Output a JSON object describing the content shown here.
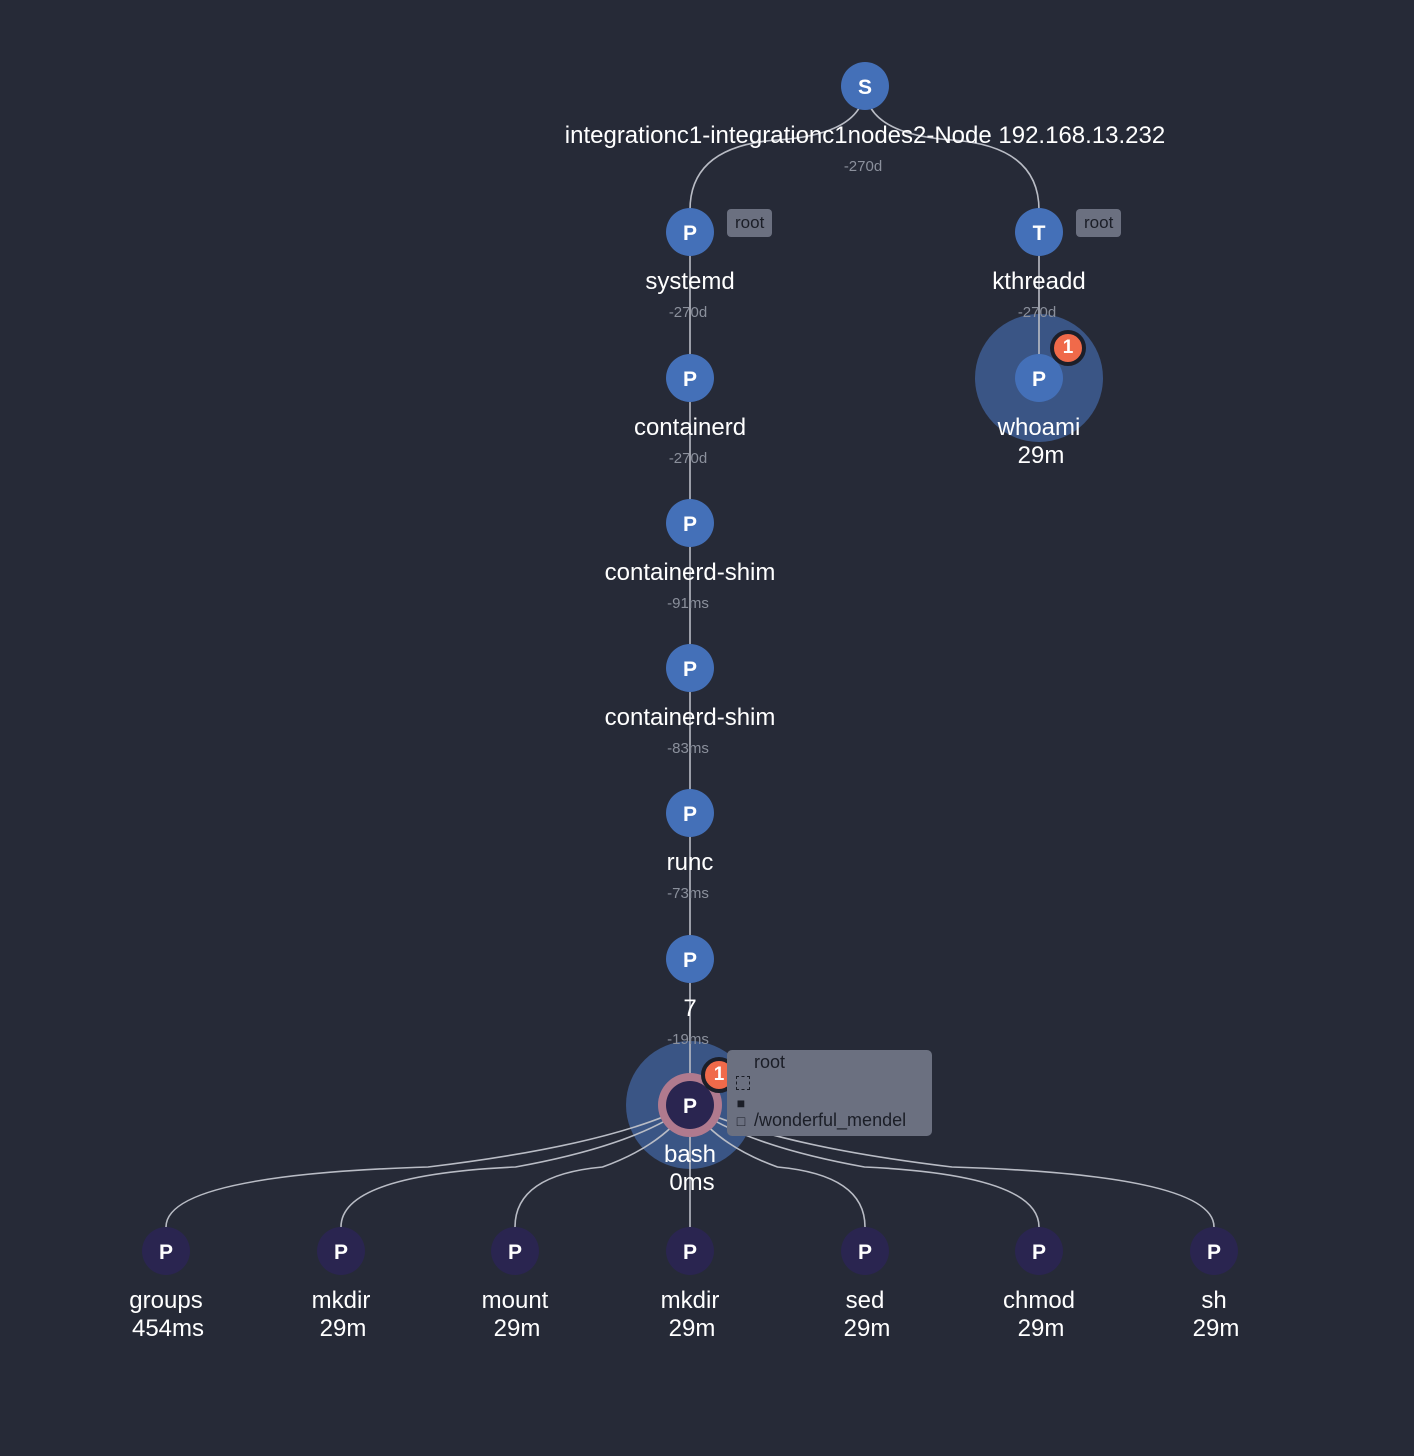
{
  "colors": {
    "background": "#262a37",
    "node_blue": "#4470b8",
    "node_dark": "#2a2550",
    "halo": "#3a5585",
    "ring": "#b07a8e",
    "edge": "#b9bcc5",
    "badge": "#f06a4a",
    "tag_bg": "#6b7080"
  },
  "nodes": [
    {
      "id": "session",
      "letter": "S",
      "name": "integrationc1-integrationc1nodes2-Node 192.168.13.232",
      "time": "-270d"
    },
    {
      "id": "systemd",
      "letter": "P",
      "name": "systemd",
      "time": "-270d",
      "tag": "root"
    },
    {
      "id": "kthreadd",
      "letter": "T",
      "name": "kthreadd",
      "time": "-270d",
      "tag": "root"
    },
    {
      "id": "whoami",
      "letter": "P",
      "name": "whoami",
      "time": "29m",
      "badge": "1"
    },
    {
      "id": "containerd",
      "letter": "P",
      "name": "containerd",
      "time": "-270d"
    },
    {
      "id": "shim1",
      "letter": "P",
      "name": "containerd-shim",
      "time": "-91ms"
    },
    {
      "id": "shim2",
      "letter": "P",
      "name": "containerd-shim",
      "time": "-83ms"
    },
    {
      "id": "runc",
      "letter": "P",
      "name": "runc",
      "time": "-73ms"
    },
    {
      "id": "seven",
      "letter": "P",
      "name": "7",
      "time": "-19ms"
    },
    {
      "id": "bash",
      "letter": "P",
      "name": "bash",
      "time": "0ms",
      "badge": "1"
    },
    {
      "id": "groups",
      "letter": "P",
      "name": "groups",
      "time": "454ms"
    },
    {
      "id": "mkdir1",
      "letter": "P",
      "name": "mkdir",
      "time": "29m"
    },
    {
      "id": "mount",
      "letter": "P",
      "name": "mount",
      "time": "29m"
    },
    {
      "id": "mkdir2",
      "letter": "P",
      "name": "mkdir",
      "time": "29m"
    },
    {
      "id": "sed",
      "letter": "P",
      "name": "sed",
      "time": "29m"
    },
    {
      "id": "chmod",
      "letter": "P",
      "name": "chmod",
      "time": "29m"
    },
    {
      "id": "sh",
      "letter": "P",
      "name": "sh",
      "time": "29m"
    }
  ],
  "edges": [
    [
      "session",
      "systemd"
    ],
    [
      "session",
      "kthreadd"
    ],
    [
      "kthreadd",
      "whoami"
    ],
    [
      "systemd",
      "containerd"
    ],
    [
      "containerd",
      "shim1"
    ],
    [
      "shim1",
      "shim2"
    ],
    [
      "shim2",
      "runc"
    ],
    [
      "runc",
      "seven"
    ],
    [
      "seven",
      "bash"
    ],
    [
      "bash",
      "groups"
    ],
    [
      "bash",
      "mkdir1"
    ],
    [
      "bash",
      "mount"
    ],
    [
      "bash",
      "mkdir2"
    ],
    [
      "bash",
      "sed"
    ],
    [
      "bash",
      "chmod"
    ],
    [
      "bash",
      "sh"
    ]
  ],
  "tooltip": {
    "user": "root",
    "container": "/wonderful_mendel",
    "icons": [
      "session-icon",
      "container-icon",
      "container-outline-icon"
    ]
  }
}
